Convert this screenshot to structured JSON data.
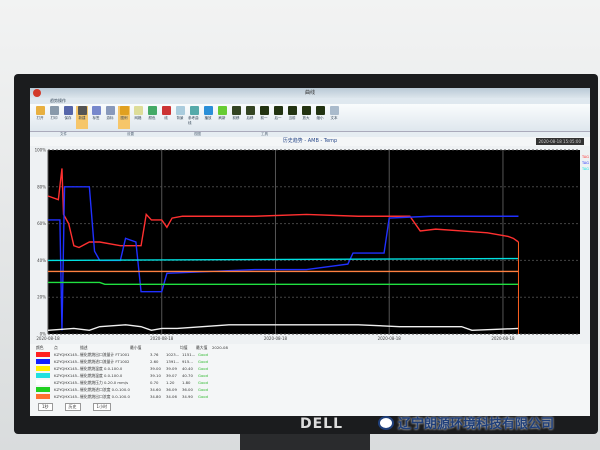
{
  "window": {
    "title": "曲线"
  },
  "ribbon": {
    "tab": "趋势操作",
    "groups": [
      "文件",
      "设置",
      "视图",
      "工具"
    ],
    "buttons": [
      {
        "label": "打开",
        "color": "#e8b040"
      },
      {
        "label": "打印",
        "color": "#8899aa"
      },
      {
        "label": "保存",
        "color": "#5566aa"
      },
      {
        "label": "新建",
        "color": "#555555",
        "selected": true
      },
      {
        "label": "标签",
        "color": "#7788cc"
      },
      {
        "label": "游标",
        "color": "#8899bb"
      },
      {
        "label": "图例",
        "color": "#e0a020",
        "selected": true
      },
      {
        "label": "网格",
        "color": "#dddd99"
      },
      {
        "label": "颜色",
        "color": "#44aa66"
      },
      {
        "label": "线",
        "color": "#cc3333"
      },
      {
        "label": "背景",
        "color": "#aaccdd"
      },
      {
        "label": "参考曲线",
        "color": "#55aaaa"
      },
      {
        "label": "播放",
        "color": "#2a8fd8"
      },
      {
        "label": "刷新",
        "color": "#66cc33"
      },
      {
        "label": "前移",
        "color": "#334422"
      },
      {
        "label": "后移",
        "color": "#334422"
      },
      {
        "label": "前一",
        "color": "#223311"
      },
      {
        "label": "后一",
        "color": "#223311"
      },
      {
        "label": "当前",
        "color": "#223311"
      },
      {
        "label": "放大",
        "color": "#223311"
      },
      {
        "label": "缩小",
        "color": "#223311"
      },
      {
        "label": "文本",
        "color": "#aabbcc"
      }
    ]
  },
  "chart": {
    "title": "历史趋势 - AMB - Temp",
    "timestamp": "2020-08-18 15:05:00",
    "legend": [
      "TAG 1",
      "TAG 2",
      "TAG 3"
    ]
  },
  "chart_data": {
    "type": "line",
    "ylim": [
      0,
      100
    ],
    "ytick_labels": [
      "0%",
      "20%",
      "40%",
      "60%",
      "80%",
      "100%"
    ],
    "xlim": [
      0,
      100
    ],
    "xtick_labels": [
      "2020-08-18",
      "2020-08-18",
      "2020-08-18",
      "2020-08-18",
      "2020-08-18"
    ],
    "grid": true,
    "series": [
      {
        "color": "#ff3030",
        "x": [
          0,
          2,
          2.7,
          3,
          4,
          5,
          6,
          8,
          10,
          14,
          18,
          19,
          20,
          22,
          23,
          24,
          26,
          40,
          50,
          60,
          70,
          72,
          75,
          80,
          85,
          89,
          90,
          91
        ],
        "y": [
          75,
          73,
          90,
          65,
          60,
          48,
          47,
          50,
          50,
          48,
          48,
          65,
          62,
          62,
          58,
          63,
          64,
          64,
          65,
          64,
          64,
          56,
          57,
          56,
          55,
          53,
          52,
          50
        ]
      },
      {
        "color": "#2030ff",
        "x": [
          0,
          2.3,
          2.7,
          3.2,
          8,
          9,
          10,
          14,
          15,
          17,
          18,
          22,
          23,
          40,
          50,
          58,
          59,
          65,
          66,
          74,
          91
        ],
        "y": [
          62,
          62,
          2,
          80,
          80,
          45,
          40,
          40,
          52,
          50,
          23,
          23,
          33,
          35,
          35,
          38,
          44,
          44,
          63,
          64,
          64
        ]
      },
      {
        "color": "#00e0e0",
        "x": [
          0,
          91
        ],
        "y": [
          40,
          41
        ]
      },
      {
        "color": "#ff8040",
        "x": [
          0,
          91
        ],
        "y": [
          34,
          34
        ]
      },
      {
        "color": "#20e040",
        "x": [
          0,
          10,
          11,
          91
        ],
        "y": [
          28,
          28,
          27,
          27
        ]
      },
      {
        "color": "#f0f0f0",
        "x": [
          0,
          5,
          8,
          10,
          15,
          18,
          20,
          22,
          25,
          35,
          40,
          60,
          68,
          80,
          82,
          91
        ],
        "y": [
          2,
          3,
          2,
          4,
          5,
          4,
          2,
          3,
          3,
          5,
          5,
          5,
          4,
          4,
          2,
          3
        ]
      }
    ]
  },
  "table": {
    "headers": [
      "颜色",
      "点",
      "描述",
      "最小值",
      "均值",
      "最大值",
      "2020-08-18 15:05:00"
    ],
    "rows": [
      {
        "color": "#ff2020",
        "tag": "KZYQHX145...",
        "desc": "催化燃烧出口流量计 FT1001",
        "min": "3.76",
        "avg": "1023...",
        "max": "1151...",
        "status": "Good"
      },
      {
        "color": "#1020ff",
        "tag": "KZYQHX145...",
        "desc": "催化燃烧进口流量计 FT1002",
        "min": "2.60",
        "avg": "1391...",
        "max": "915...",
        "status": "Good"
      },
      {
        "color": "#ffee00",
        "tag": "KZYQHX145...",
        "desc": "催化燃烧温度 0.0-100.0",
        "min": "39.00",
        "avg": "39.09",
        "max": "40.40",
        "status": "Good"
      },
      {
        "color": "#20e0e0",
        "tag": "KZYQHX145...",
        "desc": "催化燃烧温度 0.0-100.0",
        "min": "39.10",
        "avg": "39.07",
        "max": "40.70",
        "status": "Good"
      },
      {
        "color": "#ffffff",
        "tag": "KZYQHX145...",
        "desc": "催化燃烧压力 0-20.0 mm/s",
        "min": "0.70",
        "avg": "1.20",
        "max": "1.80",
        "status": "Good"
      },
      {
        "color": "#20d020",
        "tag": "KZYQHX145...",
        "desc": "催化燃烧进口浓度 0.0-100.0",
        "min": "34.60",
        "avg": "36.09",
        "max": "36.00",
        "status": "Good"
      },
      {
        "color": "#ff7030",
        "tag": "KZYQHX145...",
        "desc": "催化燃烧出口浓度 0.0-100.0",
        "min": "34.80",
        "avg": "34.06",
        "max": "34.90",
        "status": "Good"
      }
    ]
  },
  "footer": {
    "interval": "1秒",
    "mode": "历史",
    "range": "1小时"
  },
  "brand": "DELL",
  "watermark": "辽宁朗源环境科技有限公司"
}
